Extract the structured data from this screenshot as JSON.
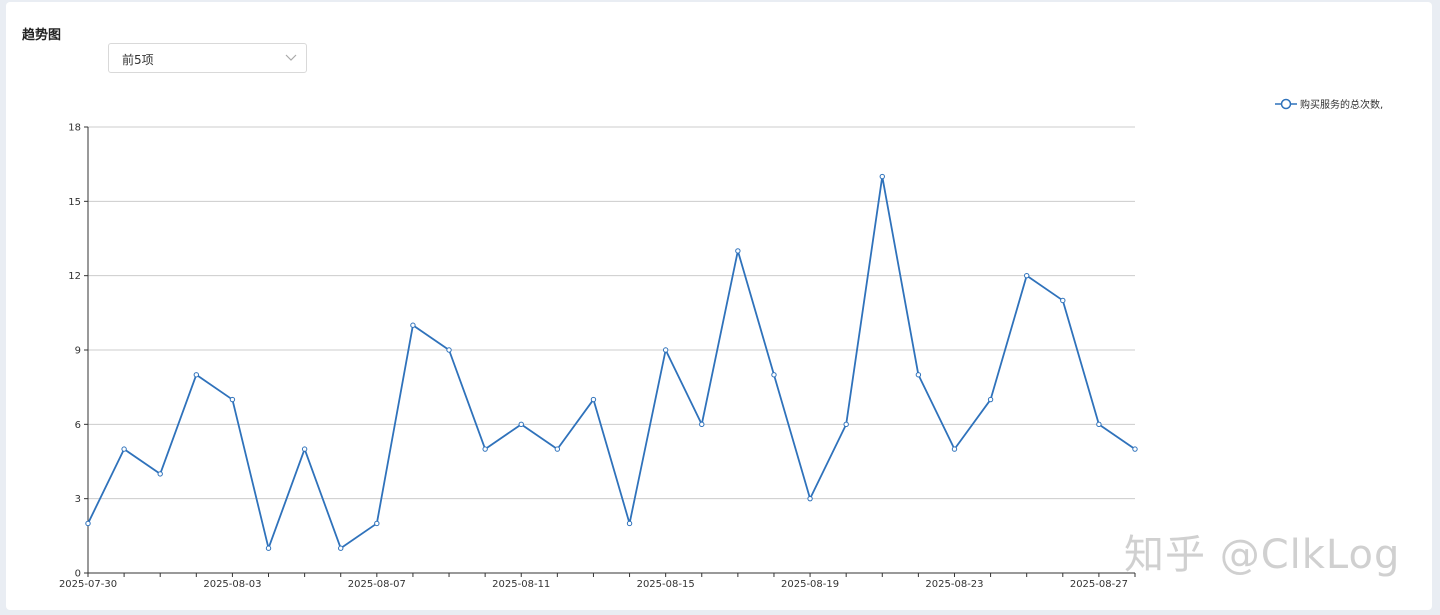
{
  "panel": {
    "title": "趋势图",
    "select_value": "前5项"
  },
  "watermark": "知乎 @ClkLog",
  "colors": {
    "line": "#2f72bb",
    "grid": "#cccccc",
    "axis": "#333333"
  },
  "chart_data": {
    "type": "line",
    "x": [
      "2025-07-30",
      "2025-07-31",
      "2025-08-01",
      "2025-08-02",
      "2025-08-03",
      "2025-08-04",
      "2025-08-05",
      "2025-08-06",
      "2025-08-07",
      "2025-08-08",
      "2025-08-09",
      "2025-08-10",
      "2025-08-11",
      "2025-08-12",
      "2025-08-13",
      "2025-08-14",
      "2025-08-15",
      "2025-08-16",
      "2025-08-17",
      "2025-08-18",
      "2025-08-19",
      "2025-08-20",
      "2025-08-21",
      "2025-08-22",
      "2025-08-23",
      "2025-08-24",
      "2025-08-25",
      "2025-08-26",
      "2025-08-27",
      "2025-08-28"
    ],
    "x_tick_labels": [
      "2025-07-30",
      "2025-08-03",
      "2025-08-07",
      "2025-08-11",
      "2025-08-15",
      "2025-08-19",
      "2025-08-23",
      "2025-08-27"
    ],
    "series": [
      {
        "name": "购买服务的总次数,",
        "values": [
          2,
          5,
          4,
          8,
          7,
          1,
          5,
          1,
          2,
          10,
          9,
          5,
          6,
          5,
          7,
          2,
          9,
          6,
          13,
          8,
          3,
          6,
          16,
          8,
          5,
          7,
          12,
          11,
          6,
          5
        ]
      }
    ],
    "y_ticks": [
      0,
      3,
      6,
      9,
      12,
      15,
      18
    ],
    "ylim": [
      0,
      18
    ],
    "grid": true,
    "legend_position": "top-right",
    "title": "",
    "xlabel": "",
    "ylabel": ""
  }
}
